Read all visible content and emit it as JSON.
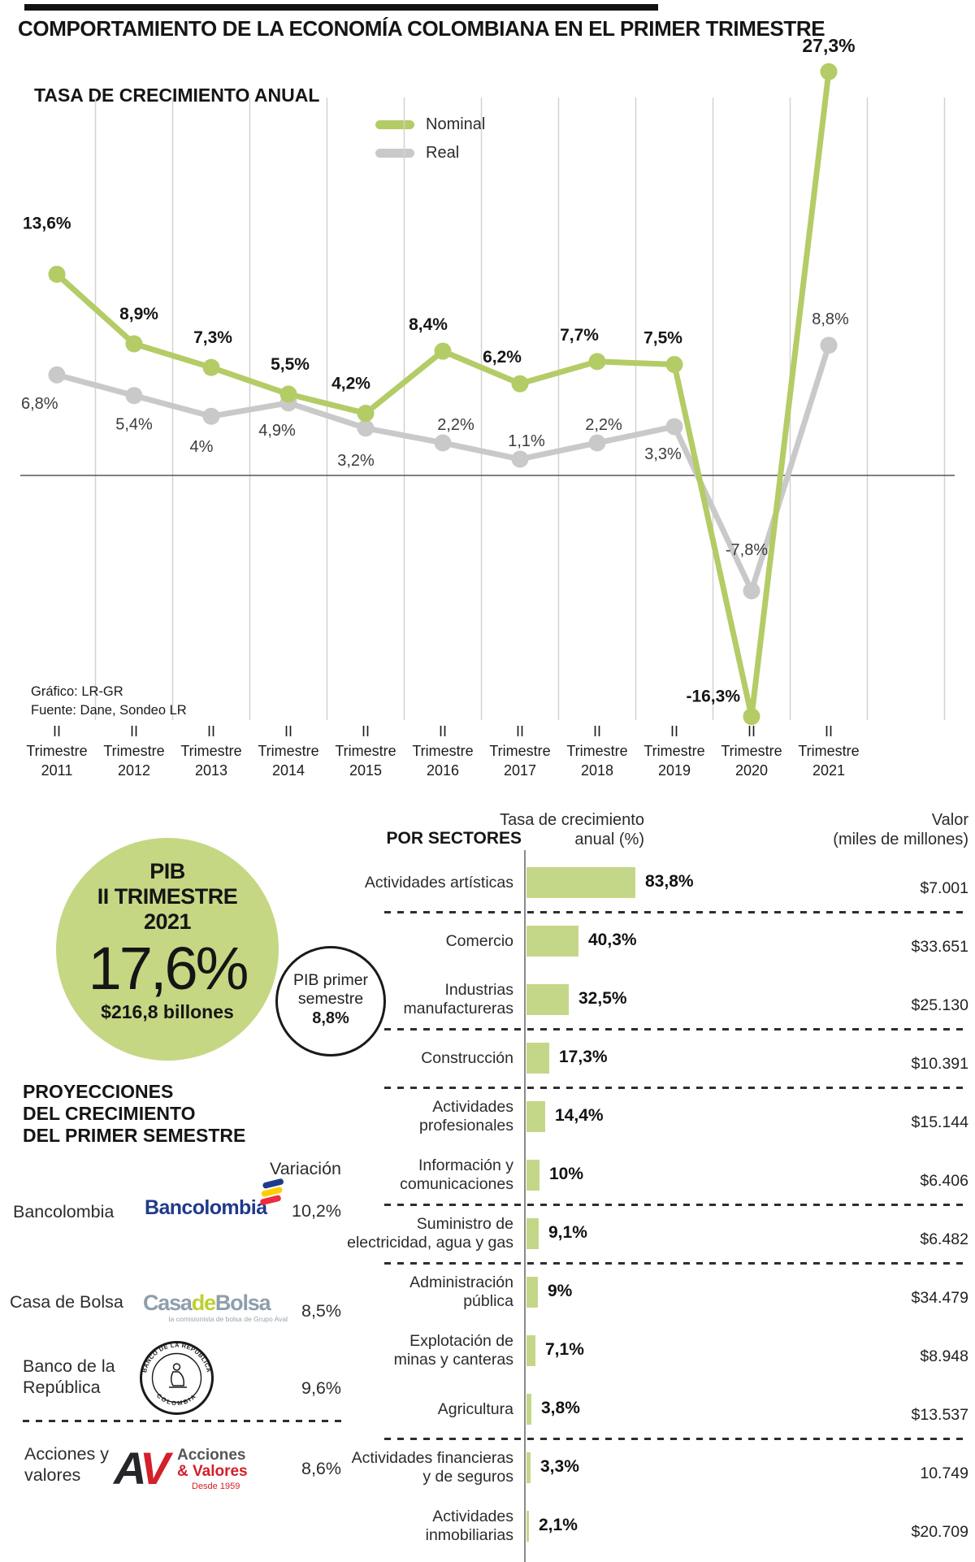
{
  "header": {
    "title": "COMPORTAMIENTO DE LA ECONOMÍA COLOMBIANA EN EL PRIMER TRIMESTRE"
  },
  "chart_data": [
    {
      "type": "line",
      "title": "TASA DE CRECIMIENTO ANUAL",
      "legend_position": "top-center",
      "grid": "vertical",
      "ylim": [
        -18,
        28
      ],
      "x_tick_prefix": [
        "II",
        "Trimestre"
      ],
      "years": [
        "2011",
        "2012",
        "2013",
        "2014",
        "2015",
        "2016",
        "2017",
        "2018",
        "2019",
        "2020",
        "2021"
      ],
      "categories": [
        "II Trimestre 2011",
        "II Trimestre 2012",
        "II Trimestre 2013",
        "II Trimestre 2014",
        "II Trimestre 2015",
        "II Trimestre 2016",
        "II Trimestre 2017",
        "II Trimestre 2018",
        "II Trimestre 2019",
        "II Trimestre 2020",
        "II Trimestre 2021"
      ],
      "series": [
        {
          "name": "Nominal",
          "color": "#b3cc66",
          "values": [
            13.6,
            8.9,
            7.3,
            5.5,
            4.2,
            8.4,
            6.2,
            7.7,
            7.5,
            -16.3,
            27.3
          ],
          "labels": [
            "13,6%",
            "8,9%",
            "7,3%",
            "5,5%",
            "4,2%",
            "8,4%",
            "6,2%",
            "7,7%",
            "7,5%",
            "-16,3%",
            "27,3%"
          ]
        },
        {
          "name": "Real",
          "color": "#c9c9c9",
          "values": [
            6.8,
            5.4,
            4.0,
            4.9,
            3.2,
            2.2,
            1.1,
            2.2,
            3.3,
            -7.8,
            8.8
          ],
          "labels": [
            "6,8%",
            "5,4%",
            "4%",
            "4,9%",
            "3,2%",
            "2,2%",
            "1,1%",
            "2,2%",
            "3,3%",
            "-7,8%",
            "8,8%"
          ]
        }
      ],
      "source_lines": [
        "Gráfico: LR-GR",
        "Fuente: Dane, Sondeo LR"
      ]
    },
    {
      "type": "bar",
      "title": "POR SECTORES",
      "rate_header": [
        "Tasa de crecimiento",
        "anual (%)"
      ],
      "value_header": [
        "Valor",
        "(miles de millones)"
      ],
      "bar_color": "#c4d789",
      "rows": [
        {
          "label": [
            "Actividades artísticas"
          ],
          "value": 83.8,
          "value_label": "83,8%",
          "amount": "$7.001"
        },
        {
          "label": [
            "Comercio"
          ],
          "value": 40.3,
          "value_label": "40,3%",
          "amount": "$33.651"
        },
        {
          "label": [
            "Industrias",
            "manufactureras"
          ],
          "value": 32.5,
          "value_label": "32,5%",
          "amount": "$25.130"
        },
        {
          "label": [
            "Construcción"
          ],
          "value": 17.3,
          "value_label": "17,3%",
          "amount": "$10.391"
        },
        {
          "label": [
            "Actividades",
            "profesionales"
          ],
          "value": 14.4,
          "value_label": "14,4%",
          "amount": "$15.144"
        },
        {
          "label": [
            "Información y",
            "comunicaciones"
          ],
          "value": 10,
          "value_label": "10%",
          "amount": "$6.406"
        },
        {
          "label": [
            "Suministro de",
            "electricidad, agua y gas"
          ],
          "value": 9.1,
          "value_label": "9,1%",
          "amount": "$6.482"
        },
        {
          "label": [
            "Administración",
            "pública"
          ],
          "value": 9,
          "value_label": "9%",
          "amount": "$34.479"
        },
        {
          "label": [
            "Explotación de",
            "minas y canteras"
          ],
          "value": 7.1,
          "value_label": "7,1%",
          "amount": "$8.948"
        },
        {
          "label": [
            "Agricultura"
          ],
          "value": 3.8,
          "value_label": "3,8%",
          "amount": "$13.537"
        },
        {
          "label": [
            "Actividades financieras",
            "y de seguros"
          ],
          "value": 3.3,
          "value_label": "3,3%",
          "amount": "10.749"
        },
        {
          "label": [
            "Actividades",
            "inmobiliarias"
          ],
          "value": 2.1,
          "value_label": "2,1%",
          "amount": "$20.709"
        }
      ],
      "separators_after": [
        0,
        2,
        3,
        5,
        6,
        9
      ]
    }
  ],
  "pib_badge": {
    "line1": "PIB",
    "line2": "II TRIMESTRE",
    "line3": "2021",
    "value": "17,6%",
    "amount": "$216,8 billones",
    "color": "#c5d783"
  },
  "pib_semester_badge": {
    "label_lines": [
      "PIB primer",
      "semestre"
    ],
    "value": "8,8%"
  },
  "projections": {
    "title_lines": [
      "PROYECCIONES",
      "DEL CRECIMIENTO",
      "DEL PRIMER SEMESTRE"
    ],
    "column_header": "Variación",
    "rows": [
      {
        "name": "Bancolombia",
        "value": "10,2%"
      },
      {
        "name": "Casa de Bolsa",
        "value": "8,5%"
      },
      {
        "name": "Banco de la República",
        "name_lines": [
          "Banco de la",
          "República"
        ],
        "value": "9,6%"
      },
      {
        "name": "Acciones y valores",
        "name_lines": [
          "Acciones y",
          "valores"
        ],
        "value": "8,6%"
      }
    ]
  },
  "logos": {
    "bancolombia": {
      "wordmark": "Bancolombia"
    },
    "casa_de_bolsa": {
      "word1": "Casa",
      "word2": "de",
      "word3": "Bolsa",
      "tagline": "la comisionista de bolsa de Grupo Aval"
    },
    "banco_republica": {
      "arc_top": "BANCO DE LA REPÚBLICA",
      "arc_bottom": "COLOMBIA"
    },
    "acciones_valores": {
      "letter_a": "A",
      "letter_v": "V",
      "line1": "Acciones",
      "line2": "& Valores",
      "line3": "Desde 1959"
    }
  },
  "colors": {
    "line_green": "#b3cc66",
    "bar_green": "#c4d789",
    "circle_green": "#c5d783",
    "gray_line": "#c9c9c9",
    "bancolombia_navy": "#1f3a8c",
    "flag_yellow": "#ffcd00",
    "flag_red": "#ef2b3e",
    "casa_gray": "#8e9eab",
    "casa_green": "#bdd02f",
    "av_red": "#d3202a",
    "av_gray": "#55565a"
  }
}
